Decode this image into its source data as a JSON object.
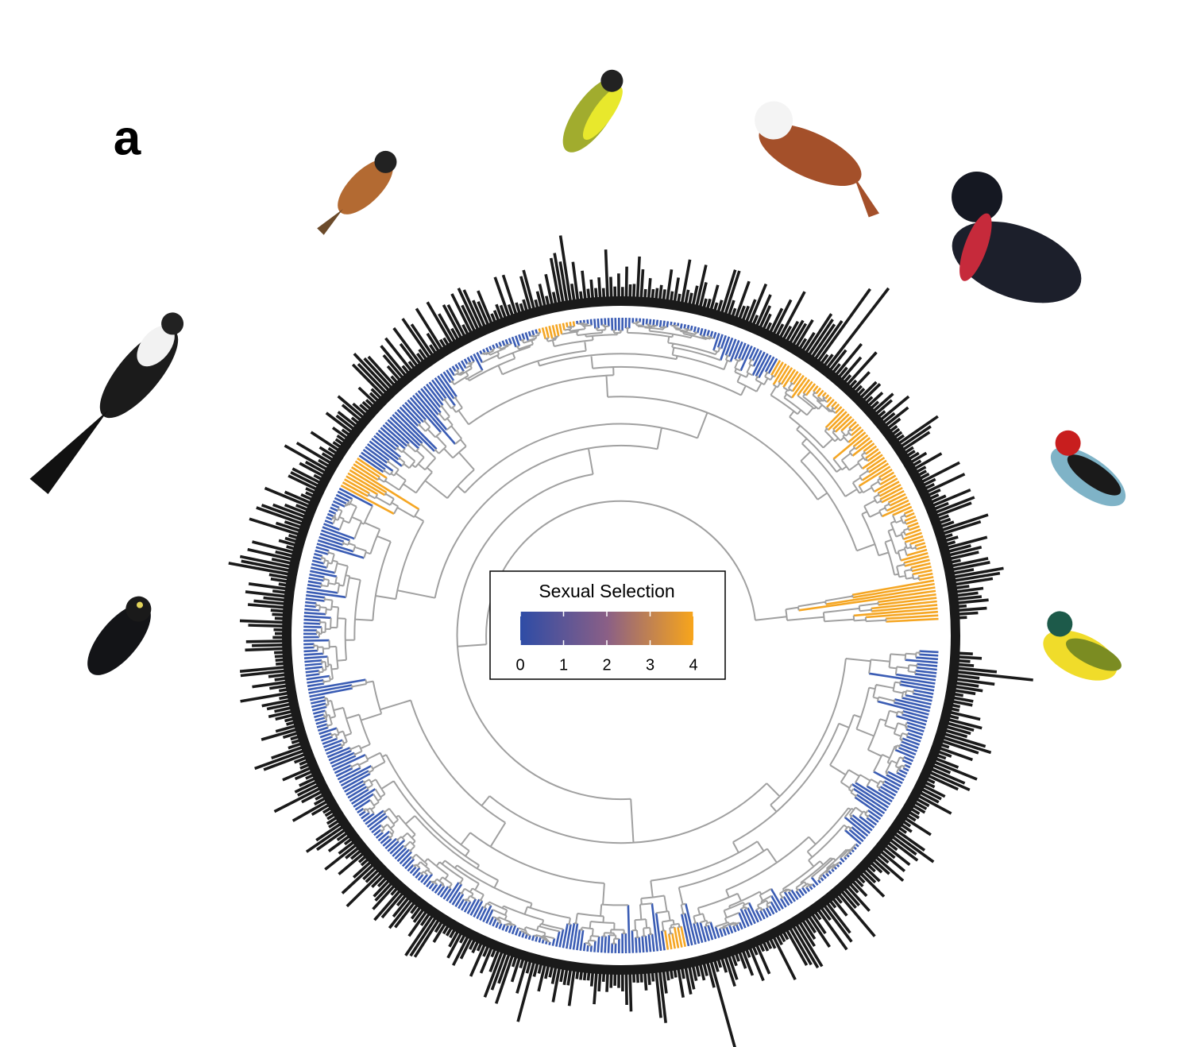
{
  "panel_label": "a",
  "chart_data": {
    "type": "colorbar",
    "title": "Sexual Selection",
    "lim": [
      0,
      4
    ],
    "ticks": [
      0,
      1,
      2,
      3,
      4
    ],
    "colors": [
      "#2e4ca6",
      "#8a5f86",
      "#f8a51b"
    ]
  }
}
